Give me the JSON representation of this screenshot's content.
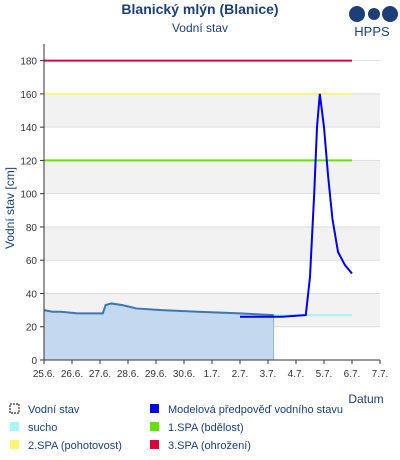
{
  "chart_data": {
    "type": "line",
    "title": "Blanický mlýn (Blanice)",
    "subtitle": "Vodní stav",
    "logo": "HPPS",
    "y_label": "Vodní stav [cm]",
    "x_label": "Datum",
    "xlim": [
      0,
      12
    ],
    "xticks": [
      {
        "value": 0,
        "label": "25.6."
      },
      {
        "value": 1,
        "label": "26.6."
      },
      {
        "value": 2,
        "label": "27.6."
      },
      {
        "value": 3,
        "label": "28.6."
      },
      {
        "value": 4,
        "label": "29.6."
      },
      {
        "value": 5,
        "label": "30.6."
      },
      {
        "value": 6,
        "label": "1.7."
      },
      {
        "value": 7,
        "label": "2.7."
      },
      {
        "value": 8,
        "label": "3.7."
      },
      {
        "value": 9,
        "label": "4.7."
      },
      {
        "value": 10,
        "label": "5.7."
      },
      {
        "value": 11,
        "label": "6.7."
      },
      {
        "value": 12,
        "label": "7.7."
      }
    ],
    "ylim": [
      0,
      190
    ],
    "yticks": [
      0,
      20,
      40,
      60,
      80,
      100,
      120,
      140,
      160,
      180
    ],
    "grid": true,
    "series": [
      {
        "name": "Vodní stav",
        "color": "#3a78b5",
        "area_color": "#c4d9ef",
        "legend_color": "#ffffff",
        "x": [
          0,
          0.3,
          0.6,
          1.2,
          2.1,
          2.2,
          2.4,
          2.8,
          3.3,
          4.2,
          5.5,
          7.0,
          8.2
        ],
        "values": [
          30,
          29,
          29,
          28,
          28,
          33,
          34,
          33,
          31,
          30,
          29,
          28,
          27
        ]
      },
      {
        "name": "Modelová předpověď vodního stavu",
        "color": "#0000ee",
        "x": [
          7.0,
          8.5,
          9.35,
          9.5,
          9.65,
          9.75,
          9.85,
          10.0,
          10.15,
          10.3,
          10.5,
          10.75,
          11.0
        ],
        "values": [
          26,
          26,
          27,
          50,
          100,
          140,
          160,
          140,
          110,
          85,
          65,
          57,
          52
        ]
      },
      {
        "name": "sucho",
        "color": "#aaf5f5",
        "x": [
          0,
          11
        ],
        "values": [
          27,
          27
        ]
      },
      {
        "name": "1.SPA (bdělost)",
        "color": "#66e000",
        "x": [
          0,
          11
        ],
        "values": [
          120,
          120
        ]
      },
      {
        "name": "2.SPA (pohotovost)",
        "color": "#f8f870",
        "x": [
          0,
          11
        ],
        "values": [
          160,
          160
        ]
      },
      {
        "name": "3.SPA (ohrožení)",
        "color": "#e0003a",
        "x": [
          0,
          11
        ],
        "values": [
          180,
          180
        ]
      }
    ]
  }
}
